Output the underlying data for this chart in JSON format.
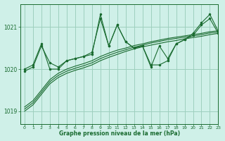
{
  "bg_color": "#cff0e8",
  "grid_color": "#9ecfbe",
  "line_color": "#1a6b30",
  "marker_color": "#1a6b30",
  "text_color": "#1a6b30",
  "xlabel": "Graphe pression niveau de la mer (hPa)",
  "xlim": [
    -0.5,
    23
  ],
  "ylim": [
    1018.7,
    1021.55
  ],
  "yticks": [
    1019,
    1020,
    1021
  ],
  "xticks": [
    0,
    1,
    2,
    3,
    4,
    5,
    6,
    7,
    8,
    9,
    10,
    11,
    12,
    13,
    14,
    15,
    16,
    17,
    18,
    19,
    20,
    21,
    22,
    23
  ],
  "lines": [
    {
      "y": [
        1019.0,
        null,
        null,
        null,
        null,
        null,
        null,
        null,
        null,
        null,
        null,
        null,
        null,
        null,
        null,
        null,
        null,
        null,
        null,
        null,
        null,
        null,
        null,
        1020.85
      ],
      "interp": [
        [
          0,
          1019.0
        ],
        [
          1,
          1019.15
        ],
        [
          2,
          1019.4
        ],
        [
          3,
          1019.65
        ],
        [
          4,
          1019.8
        ],
        [
          5,
          1019.9
        ],
        [
          6,
          1019.97
        ],
        [
          7,
          1020.03
        ],
        [
          8,
          1020.1
        ],
        [
          9,
          1020.2
        ],
        [
          10,
          1020.28
        ],
        [
          11,
          1020.35
        ],
        [
          12,
          1020.42
        ],
        [
          13,
          1020.48
        ],
        [
          14,
          1020.53
        ],
        [
          15,
          1020.57
        ],
        [
          16,
          1020.61
        ],
        [
          17,
          1020.65
        ],
        [
          18,
          1020.68
        ],
        [
          19,
          1020.72
        ],
        [
          20,
          1020.75
        ],
        [
          21,
          1020.78
        ],
        [
          22,
          1020.82
        ],
        [
          23,
          1020.85
        ]
      ]
    },
    {
      "interp": [
        [
          0,
          1019.05
        ],
        [
          1,
          1019.2
        ],
        [
          2,
          1019.45
        ],
        [
          3,
          1019.7
        ],
        [
          4,
          1019.85
        ],
        [
          5,
          1019.95
        ],
        [
          6,
          1020.02
        ],
        [
          7,
          1020.08
        ],
        [
          8,
          1020.15
        ],
        [
          9,
          1020.25
        ],
        [
          10,
          1020.33
        ],
        [
          11,
          1020.4
        ],
        [
          12,
          1020.46
        ],
        [
          13,
          1020.52
        ],
        [
          14,
          1020.57
        ],
        [
          15,
          1020.62
        ],
        [
          16,
          1020.66
        ],
        [
          17,
          1020.7
        ],
        [
          18,
          1020.73
        ],
        [
          19,
          1020.76
        ],
        [
          20,
          1020.79
        ],
        [
          21,
          1020.82
        ],
        [
          22,
          1020.86
        ],
        [
          23,
          1020.88
        ]
      ]
    },
    {
      "interp": [
        [
          0,
          1019.1
        ],
        [
          1,
          1019.25
        ],
        [
          2,
          1019.5
        ],
        [
          3,
          1019.75
        ],
        [
          4,
          1019.9
        ],
        [
          5,
          1020.0
        ],
        [
          6,
          1020.07
        ],
        [
          7,
          1020.13
        ],
        [
          8,
          1020.2
        ],
        [
          9,
          1020.3
        ],
        [
          10,
          1020.38
        ],
        [
          11,
          1020.45
        ],
        [
          12,
          1020.5
        ],
        [
          13,
          1020.56
        ],
        [
          14,
          1020.6
        ],
        [
          15,
          1020.65
        ],
        [
          16,
          1020.69
        ],
        [
          17,
          1020.73
        ],
        [
          18,
          1020.76
        ],
        [
          19,
          1020.79
        ],
        [
          20,
          1020.82
        ],
        [
          21,
          1020.85
        ],
        [
          22,
          1020.89
        ],
        [
          23,
          1020.91
        ]
      ]
    },
    {
      "interp": [
        [
          0,
          1019.95
        ],
        [
          1,
          1020.05
        ],
        [
          2,
          1020.55
        ],
        [
          3,
          1020.15
        ],
        [
          4,
          1020.05
        ],
        [
          5,
          1020.2
        ],
        [
          6,
          1020.25
        ],
        [
          7,
          1020.3
        ],
        [
          8,
          1020.35
        ],
        [
          9,
          1021.3
        ],
        [
          10,
          1020.55
        ],
        [
          11,
          1021.05
        ],
        [
          12,
          1020.65
        ],
        [
          13,
          1020.5
        ],
        [
          14,
          1020.55
        ],
        [
          15,
          1020.1
        ],
        [
          16,
          1020.1
        ],
        [
          17,
          1020.2
        ],
        [
          18,
          1020.6
        ],
        [
          19,
          1020.7
        ],
        [
          20,
          1020.85
        ],
        [
          21,
          1021.1
        ],
        [
          22,
          1021.3
        ],
        [
          23,
          1020.9
        ]
      ]
    },
    {
      "interp": [
        [
          0,
          1020.0
        ],
        [
          1,
          1020.1
        ],
        [
          2,
          1020.6
        ],
        [
          3,
          1020.0
        ],
        [
          4,
          1020.0
        ],
        [
          5,
          1020.2
        ],
        [
          6,
          1020.25
        ],
        [
          7,
          1020.3
        ],
        [
          8,
          1020.4
        ],
        [
          9,
          1021.2
        ],
        [
          10,
          1020.55
        ],
        [
          11,
          1021.05
        ],
        [
          12,
          1020.65
        ],
        [
          13,
          1020.5
        ],
        [
          14,
          1020.55
        ],
        [
          15,
          1020.05
        ],
        [
          16,
          1020.55
        ],
        [
          17,
          1020.25
        ],
        [
          18,
          1020.6
        ],
        [
          19,
          1020.7
        ],
        [
          20,
          1020.8
        ],
        [
          21,
          1021.05
        ],
        [
          22,
          1021.2
        ],
        [
          23,
          1020.85
        ]
      ]
    }
  ],
  "markers": [
    false,
    false,
    false,
    true,
    true
  ]
}
